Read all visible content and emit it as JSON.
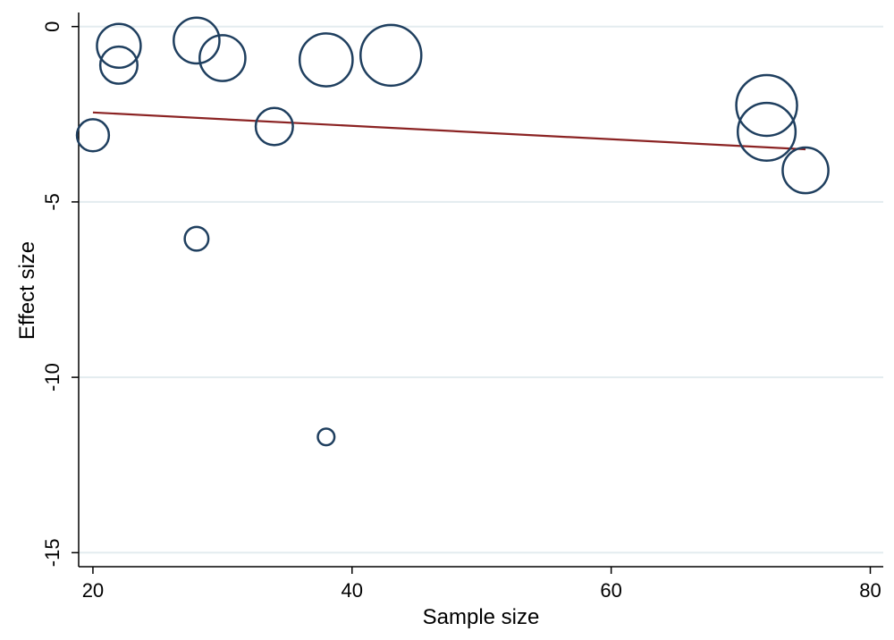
{
  "chart_data": {
    "type": "scatter",
    "title": "",
    "xlabel": "Sample size",
    "ylabel": "Effect size",
    "xlim": [
      18.9,
      81
    ],
    "ylim": [
      -15.4,
      0.4
    ],
    "xticks": [
      20,
      40,
      60,
      80
    ],
    "yticks": [
      0,
      -5,
      -10,
      -15
    ],
    "xtick_labels": [
      "20",
      "40",
      "60",
      "80"
    ],
    "ytick_labels": [
      "0",
      "-5",
      "-10",
      "-15"
    ],
    "grid": "horizontal",
    "legend": "none",
    "marker": "hollow circle, size weighted by study precision",
    "points": [
      {
        "x": 20,
        "y": -3.1,
        "weight": 0.25
      },
      {
        "x": 22,
        "y": -0.55,
        "weight": 0.5
      },
      {
        "x": 22,
        "y": -1.1,
        "weight": 0.35
      },
      {
        "x": 28,
        "y": -0.4,
        "weight": 0.55
      },
      {
        "x": 28,
        "y": -6.05,
        "weight": 0.12
      },
      {
        "x": 30,
        "y": -0.9,
        "weight": 0.55
      },
      {
        "x": 34,
        "y": -2.85,
        "weight": 0.35
      },
      {
        "x": 38,
        "y": -0.95,
        "weight": 0.75
      },
      {
        "x": 38,
        "y": -11.7,
        "weight": 0.04
      },
      {
        "x": 43,
        "y": -0.82,
        "weight": 1.0
      },
      {
        "x": 72,
        "y": -2.25,
        "weight": 1.0
      },
      {
        "x": 72,
        "y": -3.0,
        "weight": 0.9
      },
      {
        "x": 75,
        "y": -4.1,
        "weight": 0.55
      }
    ],
    "fit_line": {
      "x": [
        20,
        75
      ],
      "y": [
        -2.45,
        -3.5
      ]
    },
    "colors": {
      "marker": "#1f3f5f",
      "fit": "#8b2323",
      "grid": "#e3ecef",
      "axis": "#000000"
    }
  }
}
